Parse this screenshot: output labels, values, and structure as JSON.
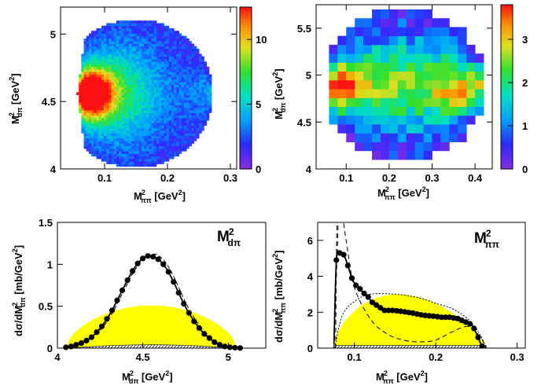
{
  "figure": {
    "panels": [
      {
        "type": "heatmap",
        "xlabel": {
          "main": "M",
          "sup": "2",
          "sub": "ππ",
          "unit": " [GeV",
          "unit_sup": "2",
          "unit_end": "]"
        },
        "ylabel": {
          "main": "M",
          "sup": "2",
          "sub": "dπ",
          "unit": " [GeV",
          "unit_sup": "2",
          "unit_end": "]"
        },
        "xticks": [
          "0.1",
          "0.2",
          "0.3"
        ],
        "yticks": [
          "4",
          "4.5",
          "5"
        ],
        "zticks": [
          "0",
          "5",
          "10"
        ]
      },
      {
        "type": "heatmap",
        "xlabel": {
          "main": "M",
          "sup": "2",
          "sub": "ππ",
          "unit": " [GeV",
          "unit_sup": "2",
          "unit_end": "]"
        },
        "ylabel": {
          "main": "M",
          "sup": "2",
          "sub": "dπ",
          "unit": " [GeV",
          "unit_sup": "2",
          "unit_end": "]"
        },
        "xticks": [
          "0.1",
          "0.2",
          "0.3",
          "0.4"
        ],
        "yticks": [
          "4",
          "4.5",
          "5",
          "5.5"
        ],
        "zticks": [
          "0",
          "1",
          "2",
          "3"
        ]
      },
      {
        "type": "scatter",
        "title": {
          "main": "M",
          "sup": "2",
          "sub": "dπ"
        },
        "xlabel": {
          "main": "M",
          "sup": "2",
          "sub": "dπ",
          "unit": " [GeV",
          "unit_sup": "2",
          "unit_end": "]"
        },
        "ylabel": {
          "pre": "dσ/dM",
          "sup": "2",
          "sub": "dπ",
          "unit": " [mb/GeV",
          "unit_sup": "2",
          "unit_end": "]"
        },
        "xticks": [
          "4",
          "4.5",
          "5"
        ],
        "yticks": [
          "0",
          "0.5",
          "1",
          "1.5"
        ]
      },
      {
        "type": "scatter",
        "title": {
          "main": "M",
          "sup": "2",
          "sub": "ππ"
        },
        "xlabel": {
          "main": "M",
          "sup": "2",
          "sub": "ππ",
          "unit": " [GeV",
          "unit_sup": "2",
          "unit_end": "]"
        },
        "ylabel": {
          "pre": "dσ/dM",
          "sup": "2",
          "sub": "ππ",
          "unit": " [mb/GeV",
          "unit_sup": "2",
          "unit_end": "]"
        },
        "xticks": [
          "0.1",
          "0.2",
          "0.3"
        ],
        "yticks": [
          "0",
          "2",
          "4",
          "6"
        ]
      }
    ]
  },
  "chart_data": [
    {
      "type": "heatmap",
      "xlim": [
        0.03,
        0.31
      ],
      "ylim": [
        4.0,
        5.2
      ],
      "zlim": [
        0,
        12.5
      ],
      "x_center_left": 0.055,
      "x_center_right": 0.27,
      "y_center": 4.55,
      "y_halfwidth": 0.55,
      "peak_value": 12,
      "peak_at": [
        0.075,
        4.55
      ]
    },
    {
      "type": "heatmap",
      "xlim": [
        0.03,
        0.44
      ],
      "ylim": [
        4.0,
        5.75
      ],
      "zlim": [
        0,
        3.8
      ],
      "x_center_left": 0.06,
      "x_center_right": 0.42,
      "y_center": 4.9,
      "y_halfwidth": 0.8,
      "peak_value": 3.5,
      "peak_at": [
        0.08,
        4.85
      ]
    },
    {
      "type": "scatter",
      "xlim": [
        4.0,
        5.22
      ],
      "ylim": [
        0,
        1.5
      ],
      "data_points": {
        "x": [
          4.05,
          4.08,
          4.11,
          4.14,
          4.17,
          4.2,
          4.23,
          4.26,
          4.29,
          4.32,
          4.35,
          4.38,
          4.41,
          4.44,
          4.47,
          4.5,
          4.53,
          4.56,
          4.59,
          4.62,
          4.65,
          4.68,
          4.71,
          4.74,
          4.77,
          4.8,
          4.83,
          4.86,
          4.89,
          4.92,
          4.95,
          4.98,
          5.01,
          5.04,
          5.07
        ],
        "y": [
          0.01,
          0.02,
          0.04,
          0.06,
          0.09,
          0.13,
          0.19,
          0.26,
          0.35,
          0.45,
          0.57,
          0.69,
          0.81,
          0.92,
          1.01,
          1.07,
          1.1,
          1.09,
          1.06,
          1.0,
          0.91,
          0.79,
          0.66,
          0.53,
          0.42,
          0.32,
          0.24,
          0.17,
          0.12,
          0.07,
          0.04,
          0.02,
          0.01,
          0.005,
          0.002
        ]
      },
      "phase_space_band": {
        "x": [
          4.05,
          5.05
        ],
        "ymax": 0.51
      },
      "hatched_band": {
        "x": [
          4.05,
          5.05
        ],
        "ymax": 0.04
      }
    },
    {
      "type": "scatter",
      "xlim": [
        0.055,
        0.31
      ],
      "ylim": [
        0,
        7
      ],
      "data_points": {
        "x": [
          0.078,
          0.082,
          0.087,
          0.092,
          0.097,
          0.102,
          0.107,
          0.112,
          0.117,
          0.122,
          0.127,
          0.132,
          0.137,
          0.142,
          0.147,
          0.152,
          0.157,
          0.162,
          0.167,
          0.172,
          0.177,
          0.182,
          0.187,
          0.192,
          0.197,
          0.202,
          0.207,
          0.212,
          0.217,
          0.222,
          0.227,
          0.232,
          0.237,
          0.242,
          0.247,
          0.252,
          0.257
        ],
        "y": [
          4.9,
          5.3,
          5.2,
          4.6,
          3.9,
          3.5,
          3.3,
          3.05,
          2.85,
          2.55,
          2.4,
          2.25,
          2.1,
          2.1,
          2.1,
          2.08,
          2.05,
          2.02,
          1.98,
          1.95,
          1.9,
          1.85,
          1.82,
          1.8,
          1.78,
          1.75,
          1.72,
          1.72,
          1.72,
          1.68,
          1.65,
          1.55,
          1.45,
          1.35,
          1.1,
          0.6,
          0.1
        ]
      },
      "phase_space_band": {
        "x": [
          0.075,
          0.262
        ],
        "ymax": 3.0
      },
      "hatched_band": {
        "x": [
          0.075,
          0.262
        ],
        "ymax": 0.15
      }
    }
  ]
}
